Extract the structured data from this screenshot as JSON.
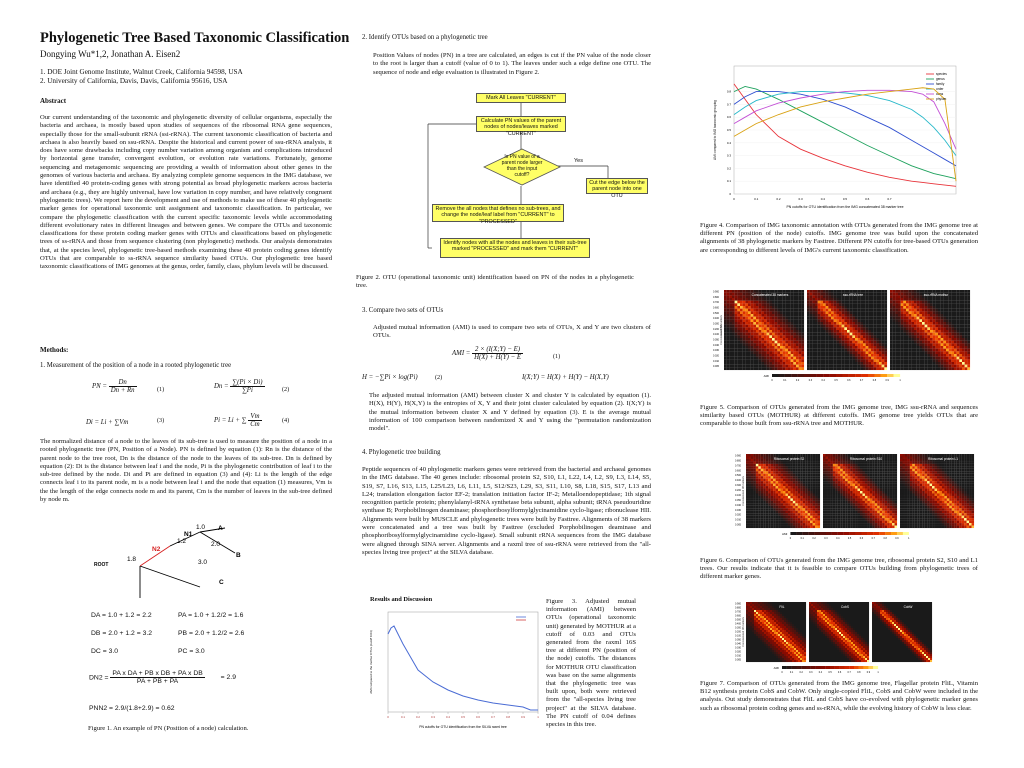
{
  "title": "Phylogenetic Tree Based Taxonomic Classification",
  "authors": "Dongying Wu*1,2, Jonathan A. Eisen2",
  "affiliations": [
    "1. DOE Joint Genome Institute, Walnut Creek, California 94598, USA",
    "2. University of California, Davis, Davis, California 95616, USA"
  ],
  "abstract_heading": "Abstract",
  "abstract_text": "Our current understanding of the taxonomic and phylogenetic diversity of cellular organisms, especially the bacteria and archaea, is mostly based upon studies of sequences of the ribosomal RNA gene sequences, especially those for the small-subunit rRNA (ssi-rRNA). The current taxonomic classification of bacteria and archaea is also heavily based on ssu-rRNA. Despite the historical and current power of ssu-rRNA analysis, it does have some drawbacks including copy number variation among organism and complications introduced by horizontal gene transfer, convergent evolution, or evolution rate variations. Fortunately, genome sequencing and metagenomic sequencing are providing a wealth of information about other genes in the genomes of various bacteria and archaea. By analyzing complete genome sequences in the IMG database, we have identified 40 protein-coding genes with strong potential as broad phylogenetic markers across bacteria and archaea (e.g., they are highly universal, have low variation in copy number, and have relatively congruent phylogenetic trees). We report here the development and use of methods to make use of these 40 phylogenetic marker genes for operational taxonomic unit assignment and taxonomic classification. In particular, we compare the phylogenetic classification with the current specific taxonomic levels while accommodating different evolutionary rates in different lineages and between genes. We compare the OTUs and taxonomic classifications for these protein coding marker genes with OTUs and classifications based on phylogenetic trees of ss-rRNA and those from sequence clustering (non phylogenetic) methods. Our analysis demonstrates that, at the species level, phylogenetic tree-based methods examining these 40 protein coding genes identify OTUs that are comparable to ss-rRNA sequence similarity based OTUs. Our phylogenetic tree based taxonomic classifications of IMG genomes at the genus, order, family, class, phylum levels will be discussed.",
  "methods_heading": "Methods:",
  "methods_1": "1. Measurement of the position of a node in a rooted phylogenetic tree",
  "methods_1_text": "The normalized distance of a node to the leaves of its sub-tree is used to measure the position of a node in a rooted phylogenetic tree (PN, Position of a Node). PN is defined by equation (1): Rn is the distance of the parent node to the tree root, Dn is the distance of the node to the leaves of its sub-tree. Dn is defined by equation (2): Di is the distance between leaf i and the node, Pi is the phylogenetic contribution of leaf i to the sub-tree defined by the node. Di and Pi are defined in equation (3) and (4): Li is the length of the edge connects leaf i to its parent node, m is a node between leaf i and the node that equation (1) measures, Vm is the the length of the edge connects node m and its parent, Cm is the number of leaves in the sub-tree defined by node m.",
  "equations": {
    "eq1": {
      "lhs": "PN =",
      "num": "Dn",
      "den": "Dn + Rn",
      "no": "(1)"
    },
    "eq2": {
      "lhs": "Dn =",
      "num": "∑(Pi × Di)",
      "den": "∑Pi",
      "no": "(2)"
    },
    "eq3": {
      "text": "Di = Li + ∑Vm",
      "no": "(3)"
    },
    "eq4": {
      "lhs": "Pi = Li + ∑",
      "num": "Vm",
      "den": "Cm",
      "no": "(4)"
    }
  },
  "fig1_tree": {
    "labels": [
      "1.0",
      "A",
      "N1",
      "1.2",
      "2.0",
      "N2",
      "B",
      "1.8",
      "3.0",
      "ROOT",
      "C",
      "D"
    ]
  },
  "fig1_calcs": [
    "DA = 1.0 + 1.2 = 2.2",
    "PA = 1.0 + 1.2/2 = 1.6",
    "DB = 2.0 + 1.2 = 3.2",
    "PB = 2.0 + 1.2/2 = 2.6",
    "DC = 3.0",
    "PC = 3.0"
  ],
  "fig1_dn2": {
    "lhs": "DN2 =",
    "num": "PA x DA + PB x DB + PA x DB",
    "den": "PA + PB + PA",
    "result": "= 2.9"
  },
  "fig1_pn2": "PNN2 = 2.9/(1.8+2.9) = 0.62",
  "fig1_caption": "Figure 1. An example of PN (Position of a node) calculation.",
  "methods_2": "2. Identify OTUs based on a phylogenetic tree",
  "methods_2_text": "Position Values of nodes (PN) in a tree are calculated, an edges is cut if the PN value of the node closer to the root is larger than a cutoff (value of 0 to 1). The leaves under such a edge define one OTU. The sequence of node and edge evaluation is illustrated in Figure 2.",
  "flow": {
    "b1": "Mark All Leaves \"CURRENT\"",
    "b2": "Calculate PN values of the parent nodes of nodes/leaves marked \"CURRENT\"",
    "b3": "Is PN value of a parent node larger than the input cutoff?",
    "yes": "Yes",
    "b4": "Cut the edge below the parent node into one OTU",
    "b5": "Remove the all nodes that defines no sub-trees, and change the node/leaf label from \"CURRENT\" to \"PROCESSED\"",
    "b6": "Identify nodes with all the nodes and leaves in their sub-tree marked \"PROCESSED\" and mark them \"CURRENT\""
  },
  "fig2_caption": "Figure 2. OTU (operational taxonomic unit) identification based on PN of the nodes in a phylogenetic tree.",
  "methods_3": "3. Compare two sets of OTUs",
  "methods_3_text": "Adjusted mutual information (AMI) is used to compare two sets of OTUs, X and Y are two clusters of OTUs.",
  "eq_ami": {
    "lhs": "AMI =",
    "num": "2 × (I(X;Y) − E)",
    "den": "H(X) + H(Y) − E",
    "no": "(1)"
  },
  "eq_h": {
    "text": "H = −∑Pi × log(Pi)",
    "no": "(2)"
  },
  "eq_i": "I(X;Y) = H(X) + H(Y) − H(X,Y)",
  "methods_3_text2": "The adjusted mutual information (AMI) between cluster X and cluster Y is calculated by equation (1). H(X), H(Y), H(X,Y) is the entropies of X, Y and their joint cluster calculated by equation (2). I(X;Y) is the mutual information between cluster X and Y defined by equation (3). E is the average mutual information of 100 comparison between randomized X and Y using the \"permutation randomization model\".",
  "methods_4": "4. Phylogenetic tree building",
  "methods_4_text": "Peptide sequences of 40 phylogenetic markers genes were retrieved from the bacterial and archaeal genomes in the IMG database. The 40 genes include: ribosomal protein S2, S10, L1, L22, L4, L2, S9, L3, L14, S5, S19, S7, L16, S13, L15, L25/L23, L6, L11, L5, S12/S23, L29, S3, S11, L10, S8, L18, S15, S17, L13 and L24; translation elongation factor EF-2; translation initiation factor IF-2; Metalloendopeptidase; 1th signal recognition particle protein; phenylalanyl-tRNA synthetase beta subunit, alpha subunit; tRNA pseudouridine synthase B; Porphobilinogen deaminase; phosphoribosylformylglycinamidine cyclo-ligase; ribonuclease HII. Alignments were built by MUSCLE and phylogenetic trees were built by Fasttree. Alignments of 38 markers were concatenated and a tree was built by Fasttree (excluded Porphobilinogen deaminase and phosphoribosylformylglycinamidine cyclo-ligase). Small subunit rRNA sequences from the IMG database were aligned through SINA server. Alignments and a raxml tree of ssu-rRNA were retrieved from the \"all-species living tree project\" at the SILVA database.",
  "results_heading": "Results and Discussion",
  "fig3_caption": "Figure 3. Adjusted mutual information (AMI) between OTUs (operational taxonomic unit) generated by MOTHUR at a cutoff of 0.03 and OTUs generated from the raxml 16S tree at different PN (position of the node) cutoffs. The distances for MOTHUR OTU classification was base on the same alignments that the phylogenetic tree was built upon, both were retrieved from the \"all-species living tree project\" at the SILVA database. The PN cutoff of 0.04 defines species in this tree.",
  "fig3_axis": {
    "xlabel": "PN cutoffs for OTU identification from the SILVA raxml tree",
    "ylabel": "AMI compared to the mothur OTUs (cutoff 0.03)"
  },
  "fig4_caption": "Figure 4. Comparison of IMG taxonomic annotation with OTUs generated from the IMG genome tree at different PN (position of the node) cutoffs. IMG genome tree was build upon the concatenated alignments of 38 phylogenetic markers by Fasttree. Different PN cutoffs for tree-based OTUs generation are corresponding to different levels of IMG's current taxonomic classification.",
  "fig4_axis": {
    "xlabel": "PN cutoffs for OTU identification from the IMG concatenated 38 marker tree",
    "ylabel": "AMI compared to IMG taxonomic grouping"
  },
  "fig4_legend": [
    "species",
    "genus",
    "family",
    "order",
    "class",
    "phylum"
  ],
  "fig5_caption": "Figure 5. Comparison of OTUs generated from the IMG genome tree, IMG ssu-rRNA and sequences similarity based OTUs (MOTHUR) at different cutoffs. IMG genome tree yields OTUs that are comparable to those built from ssu-rRNA tree and MOTHUR.",
  "fig5_panels": [
    "Concatenated 38 markers",
    "ssu-rRNA tree",
    "ssu-rRNA mothur"
  ],
  "fig5_side": [
    "Concatenated 38 markers",
    "ssu-rRNA"
  ],
  "fig6_caption": "Figure 6. Comparison of OTUs generated from the IMG genome tree, ribosomal protein S2, S10 and L1 trees. Our results indicate that it is feasible to compare OTUs building from phylogenetic trees of different marker genes.",
  "fig6_panels": [
    "Ribosomal protein S2",
    "Ribosomal protein S10",
    "Ribosomal protein L1"
  ],
  "fig6_side": [
    "Concatenated 38 markers"
  ],
  "fig7_caption": "Figure 7. Comparison of OTUs generated from the IMG genome tree, Flagellar protein FliL, Vitamin B12 synthesis protein CobS and CobW. Only single-copied FliL, CobS and CobW were included in the analysis. Out study demonstrates that FliL and CobS have co-evolved with phylogenetic marker genes such as ribosomal protein coding genes and ss-rRNA, while the evolving history of CobW is less clear.",
  "fig7_panels": [
    "FliL",
    "CobS",
    "CobW"
  ],
  "fig7_side": [
    "Concatenated 38 markers"
  ],
  "ami_label": "AMI",
  "ami_ticks": [
    "0",
    "0.1",
    "0.2",
    "0.3",
    "0.4",
    "0.5",
    "0.6",
    "0.7",
    "0.8",
    "0.9",
    "1"
  ],
  "hm_ticks": [
    "0.900",
    "0.800",
    "0.700",
    "0.600",
    "0.500",
    "0.400",
    "0.300",
    "0.200",
    "0.100",
    "0.050",
    "0.040",
    "0.030",
    "0.020",
    "0.010",
    "0.005"
  ],
  "colors": {
    "heat_low": "#1a1a1a",
    "heat_mid": "#e23000",
    "heat_high": "#ffff99",
    "flow_box": "#ffff66",
    "curve": "#4a6cd4"
  },
  "chart_data": [
    {
      "type": "line",
      "title": "",
      "xlabel": "PN cutoffs for OTU identification from the SILVA raxml tree",
      "ylabel": "AMI compared to the mothur OTUs (cutoff 0.03)",
      "x": [
        0.0,
        0.02,
        0.04,
        0.06,
        0.1,
        0.15,
        0.2,
        0.3,
        0.4,
        0.5,
        0.6,
        0.7,
        0.8,
        0.9,
        0.95,
        1.0
      ],
      "series": [
        {
          "values": [
            0.78,
            0.84,
            0.86,
            0.8,
            0.68,
            0.55,
            0.42,
            0.3,
            0.22,
            0.16,
            0.12,
            0.09,
            0.07,
            0.05,
            0.02,
            0.02
          ]
        }
      ],
      "ylim": [
        0,
        1
      ],
      "xticks": [
        "0",
        "0.1",
        "0.2",
        "0.3",
        "0.4",
        "0.5",
        "0.6",
        "0.7",
        "0.8",
        "0.9",
        "1"
      ]
    },
    {
      "type": "line",
      "title": "",
      "xlabel": "PN cutoffs for OTU identification from the IMG concatenated 38 marker tree",
      "ylabel": "AMI compared to IMG taxonomic grouping",
      "xlim": [
        0,
        1
      ],
      "ylim": [
        0,
        1
      ],
      "x": [
        0.0,
        0.05,
        0.1,
        0.2,
        0.3,
        0.4,
        0.5,
        0.6,
        0.7,
        0.8,
        0.85,
        0.9,
        0.95,
        1.0
      ],
      "series": [
        {
          "name": "species",
          "color": "#e8343b",
          "values": [
            0.86,
            0.74,
            0.62,
            0.45,
            0.35,
            0.28,
            0.22,
            0.17,
            0.13,
            0.1,
            0.09,
            0.08,
            0.07,
            0.06
          ]
        },
        {
          "name": "genus",
          "color": "#1da15c",
          "values": [
            0.8,
            0.84,
            0.82,
            0.74,
            0.65,
            0.56,
            0.47,
            0.38,
            0.3,
            0.22,
            0.19,
            0.16,
            0.14,
            0.12
          ]
        },
        {
          "name": "family",
          "color": "#2f4fd0",
          "values": [
            0.7,
            0.76,
            0.8,
            0.8,
            0.78,
            0.74,
            0.68,
            0.6,
            0.52,
            0.42,
            0.37,
            0.32,
            0.27,
            0.22
          ]
        },
        {
          "name": "order",
          "color": "#27b8c9",
          "values": [
            0.62,
            0.68,
            0.73,
            0.78,
            0.8,
            0.8,
            0.79,
            0.77,
            0.73,
            0.66,
            0.6,
            0.52,
            0.42,
            0.3
          ]
        },
        {
          "name": "class",
          "color": "#c34fd6",
          "values": [
            0.55,
            0.6,
            0.65,
            0.71,
            0.75,
            0.78,
            0.8,
            0.81,
            0.81,
            0.8,
            0.78,
            0.72,
            0.55,
            0.35
          ]
        },
        {
          "name": "phylum",
          "color": "#d9a213",
          "values": [
            0.45,
            0.5,
            0.55,
            0.62,
            0.68,
            0.72,
            0.75,
            0.78,
            0.8,
            0.82,
            0.83,
            0.82,
            0.74,
            0.1
          ]
        }
      ],
      "legend": "top-right",
      "xticks": [
        "0",
        "0.1",
        "0.2",
        "0.3",
        "0.4",
        "0.5",
        "0.6",
        "0.7"
      ],
      "yticks": [
        "0",
        "0.1",
        "0.2",
        "0.3",
        "0.4",
        "0.5",
        "0.6",
        "0.7",
        "0.8"
      ]
    }
  ]
}
